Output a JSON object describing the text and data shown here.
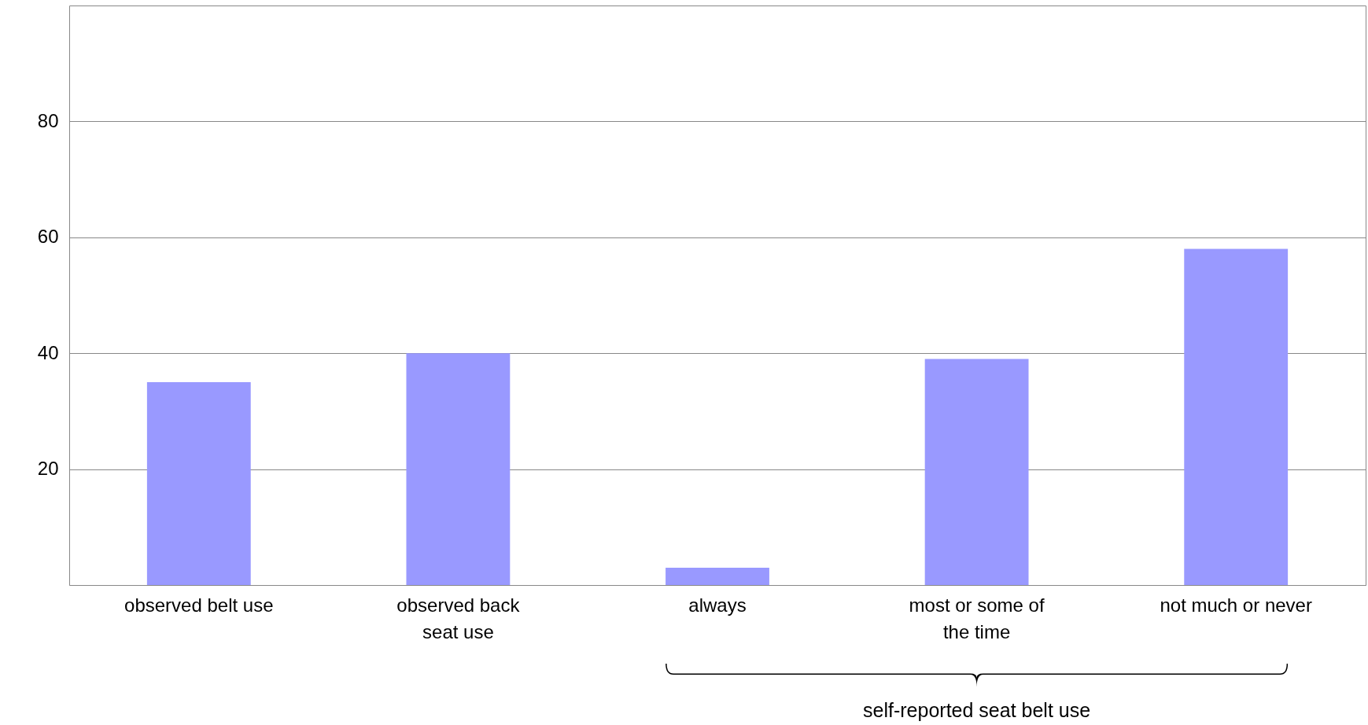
{
  "chart_data": {
    "type": "bar",
    "categories": [
      "observed belt use",
      "observed back seat use",
      "always",
      "most or some of the time",
      "not much or never"
    ],
    "values": [
      35,
      40,
      3,
      39,
      58
    ],
    "color": "#9999ff",
    "ylim": [
      0,
      100
    ],
    "yticks": [
      20,
      40,
      60,
      80
    ],
    "grid": "y",
    "annotations": [
      "self-reported seat belt use"
    ]
  }
}
